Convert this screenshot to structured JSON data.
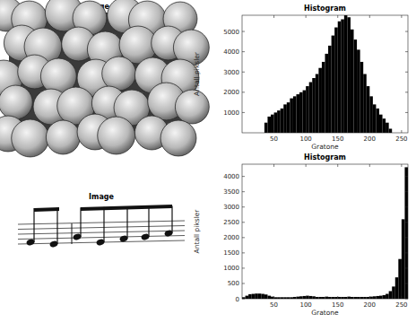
{
  "chart_data": [
    {
      "type": "image",
      "title": "Image"
    },
    {
      "type": "histogram",
      "title": "Histogram",
      "x_label": "Gratone",
      "y_label": "Antall piksler",
      "color": "#000000",
      "bins": [
        0,
        5,
        10,
        15,
        20,
        25,
        30,
        35,
        40,
        45,
        50,
        55,
        60,
        65,
        70,
        75,
        80,
        85,
        90,
        95,
        100,
        105,
        110,
        115,
        120,
        125,
        130,
        135,
        140,
        145,
        150,
        155,
        160,
        165,
        170,
        175,
        180,
        185,
        190,
        195,
        200,
        205,
        210,
        215,
        220,
        225,
        230,
        235,
        240,
        245,
        250,
        255,
        260
      ],
      "values": [
        0,
        0,
        0,
        0,
        0,
        0,
        0,
        500,
        800,
        900,
        1000,
        1100,
        1200,
        1400,
        1500,
        1700,
        1800,
        1900,
        2000,
        2100,
        2300,
        2500,
        2700,
        2900,
        3200,
        3500,
        3900,
        4300,
        4800,
        5200,
        5500,
        5600,
        5800,
        5700,
        5100,
        4600,
        4100,
        3500,
        2900,
        2300,
        1800,
        1400,
        1200,
        900,
        700,
        500,
        200,
        0,
        0,
        0,
        0,
        0
      ],
      "xlim": [
        0,
        260
      ],
      "ylim": [
        0,
        5800
      ],
      "xticks": [
        50,
        100,
        150,
        200,
        250
      ],
      "yticks": [
        1000,
        2000,
        3000,
        4000,
        5000
      ]
    },
    {
      "type": "image",
      "title": "Image"
    },
    {
      "type": "histogram",
      "title": "Histogram",
      "x_label": "Gratone",
      "y_label": "Antall piksler",
      "color": "#000000",
      "bins": [
        0,
        5,
        10,
        15,
        20,
        25,
        30,
        35,
        40,
        45,
        50,
        55,
        60,
        65,
        70,
        75,
        80,
        85,
        90,
        95,
        100,
        105,
        110,
        115,
        120,
        125,
        130,
        135,
        140,
        145,
        150,
        155,
        160,
        165,
        170,
        175,
        180,
        185,
        190,
        195,
        200,
        205,
        210,
        215,
        220,
        225,
        230,
        235,
        240,
        245,
        250,
        255,
        260
      ],
      "values": [
        50,
        100,
        150,
        160,
        170,
        170,
        160,
        140,
        100,
        70,
        50,
        50,
        50,
        50,
        50,
        50,
        60,
        70,
        80,
        90,
        100,
        90,
        80,
        60,
        60,
        60,
        70,
        60,
        60,
        60,
        60,
        60,
        60,
        70,
        60,
        60,
        60,
        60,
        60,
        60,
        70,
        80,
        90,
        100,
        120,
        160,
        250,
        400,
        700,
        1300,
        2600,
        4300
      ],
      "xlim": [
        0,
        260
      ],
      "ylim": [
        0,
        4400
      ],
      "xticks": [
        50,
        100,
        150,
        200,
        250
      ],
      "yticks": [
        0,
        500,
        1000,
        1500,
        2000,
        2500,
        3000,
        3500,
        4000
      ]
    }
  ]
}
